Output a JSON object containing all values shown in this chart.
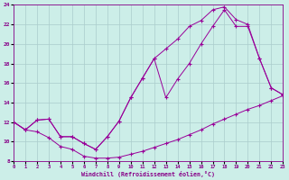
{
  "xlabel": "Windchill (Refroidissement éolien,°C)",
  "background_color": "#cceee8",
  "grid_color": "#aacccc",
  "line_color": "#990099",
  "xlim": [
    0,
    23
  ],
  "ylim": [
    8,
    24
  ],
  "xticks": [
    0,
    1,
    2,
    3,
    4,
    5,
    6,
    7,
    8,
    9,
    10,
    11,
    12,
    13,
    14,
    15,
    16,
    17,
    18,
    19,
    20,
    21,
    22,
    23
  ],
  "yticks": [
    8,
    10,
    12,
    14,
    16,
    18,
    20,
    22,
    24
  ],
  "curve_bottom_x": [
    0,
    1,
    2,
    3,
    4,
    5,
    6,
    7,
    8,
    9,
    10,
    11,
    12,
    13,
    14,
    15,
    16,
    17,
    18,
    19,
    20,
    21,
    22,
    23
  ],
  "curve_bottom_y": [
    12,
    11.2,
    11.0,
    10.4,
    9.5,
    9.2,
    8.5,
    8.3,
    8.3,
    8.4,
    8.7,
    9.0,
    9.4,
    9.8,
    10.2,
    10.7,
    11.2,
    11.8,
    12.3,
    12.8,
    13.3,
    13.7,
    14.2,
    14.7
  ],
  "curve_mid_x": [
    0,
    1,
    2,
    3,
    4,
    5,
    6,
    7,
    8,
    9,
    10,
    11,
    12,
    13,
    14,
    15,
    16,
    17,
    18,
    19,
    20,
    21,
    22,
    23
  ],
  "curve_mid_y": [
    12,
    11.2,
    12.2,
    12.3,
    10.5,
    10.5,
    9.8,
    9.2,
    10.5,
    12.1,
    14.5,
    16.5,
    18.5,
    14.5,
    16.4,
    18.0,
    20.0,
    21.8,
    23.5,
    21.8,
    21.8,
    18.5,
    15.5,
    14.8
  ],
  "curve_top_x": [
    0,
    1,
    2,
    3,
    4,
    5,
    6,
    7,
    8,
    9,
    10,
    11,
    12,
    13,
    14,
    15,
    16,
    17,
    18,
    19,
    20,
    21,
    22,
    23
  ],
  "curve_top_y": [
    12,
    11.2,
    12.2,
    12.3,
    10.5,
    10.5,
    9.8,
    9.2,
    10.5,
    12.1,
    14.5,
    16.5,
    18.5,
    19.5,
    20.5,
    21.8,
    22.4,
    23.5,
    23.8,
    22.5,
    22.0,
    18.5,
    15.5,
    14.8
  ]
}
